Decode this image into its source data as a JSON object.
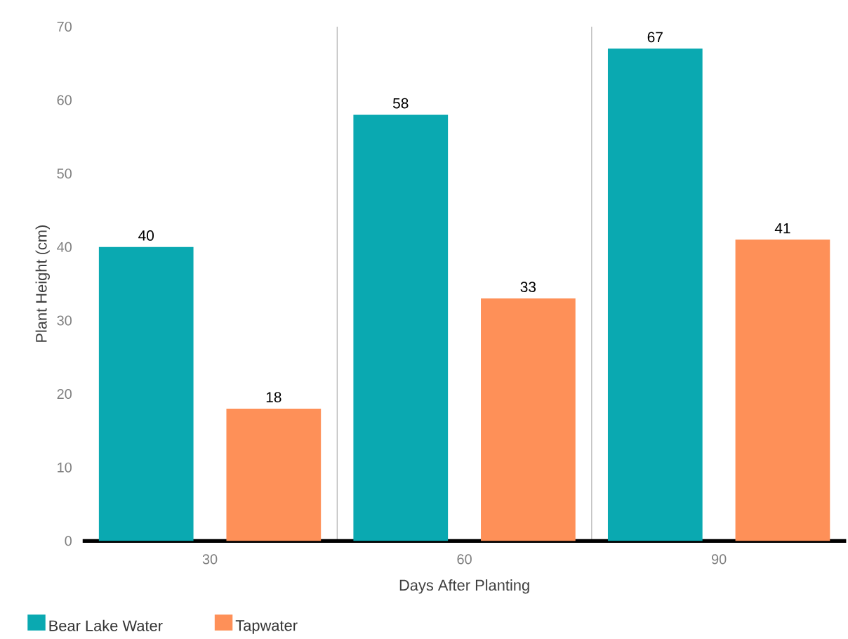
{
  "chart_data": {
    "type": "bar",
    "xlabel": "Days After Planting",
    "ylabel": "Plant Height (cm)",
    "categories": [
      "30",
      "60",
      "90"
    ],
    "series": [
      {
        "name": "Bear Lake Water",
        "color": "#0aa9b1",
        "values": [
          40,
          58,
          67
        ]
      },
      {
        "name": "Tapwater",
        "color": "#fe9058",
        "values": [
          18,
          33,
          41
        ]
      }
    ],
    "ylim": [
      0,
      70
    ],
    "yticks": [
      0,
      10,
      20,
      30,
      40,
      50,
      60,
      70
    ],
    "grid": "x",
    "legend": "bottom left",
    "data_labels": true
  }
}
